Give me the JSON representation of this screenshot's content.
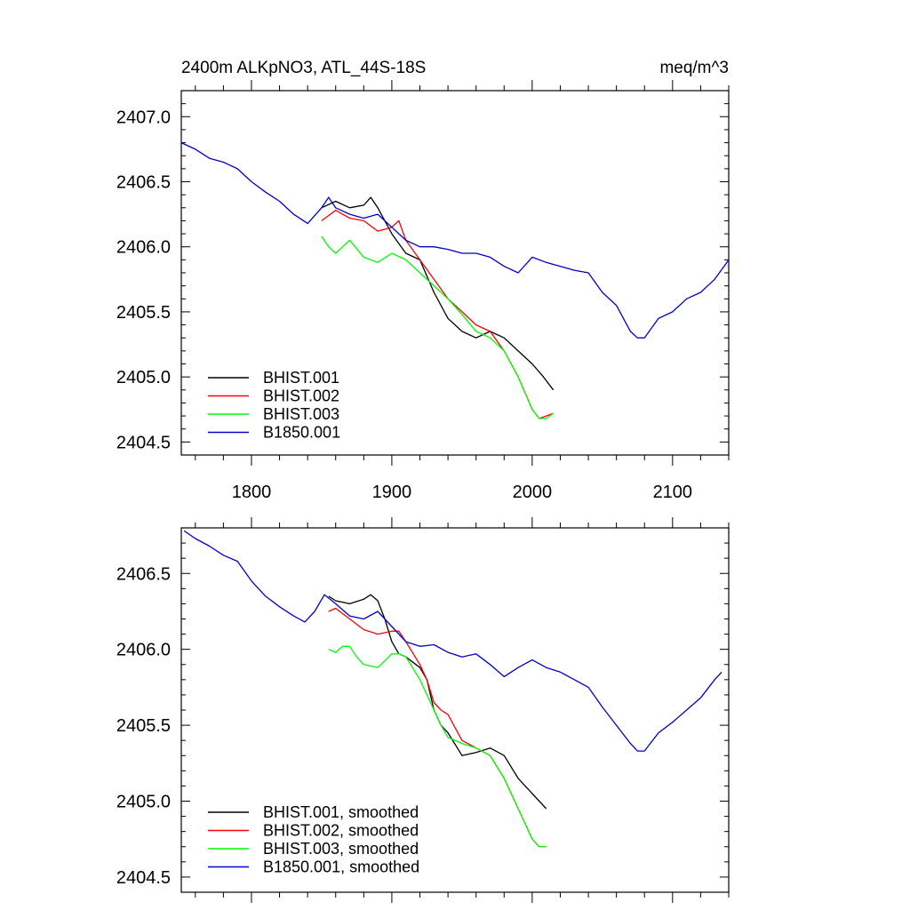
{
  "chart_data": [
    {
      "type": "line",
      "title": "2400m ALKpNO3, ATL_44S-18S",
      "units": "meq/m^3",
      "xlim": [
        1750,
        2140
      ],
      "ylim": [
        2404.4,
        2407.2
      ],
      "yticks": [
        2404.5,
        2405.0,
        2405.5,
        2406.0,
        2406.5,
        2407.0
      ],
      "ytick_labels": [
        "2404.5",
        "2405.0",
        "2405.5",
        "2406.0",
        "2406.5",
        "2407.0"
      ],
      "xticks": [
        1800,
        1900,
        2000,
        2100
      ],
      "xtick_labels": [
        "1800",
        "1900",
        "2000",
        "2100"
      ],
      "legend_position": "bottom-left",
      "series": [
        {
          "name": "BHIST.001",
          "color": "#000000",
          "x": [
            1850,
            1860,
            1870,
            1880,
            1885,
            1890,
            1900,
            1910,
            1920,
            1930,
            1940,
            1950,
            1960,
            1970,
            1980,
            1990,
            2000,
            2008,
            2015
          ],
          "y": [
            2406.3,
            2406.35,
            2406.3,
            2406.32,
            2406.38,
            2406.3,
            2406.1,
            2405.95,
            2405.9,
            2405.65,
            2405.45,
            2405.35,
            2405.3,
            2405.35,
            2405.3,
            2405.2,
            2405.1,
            2405.0,
            2404.9
          ]
        },
        {
          "name": "BHIST.002",
          "color": "#ff0000",
          "x": [
            1850,
            1860,
            1870,
            1880,
            1890,
            1900,
            1905,
            1910,
            1920,
            1930,
            1940,
            1950,
            1960,
            1970,
            1980,
            1990,
            2000,
            2005,
            2010,
            2015
          ],
          "y": [
            2406.2,
            2406.28,
            2406.22,
            2406.2,
            2406.12,
            2406.15,
            2406.2,
            2406.05,
            2405.9,
            2405.75,
            2405.6,
            2405.5,
            2405.4,
            2405.35,
            2405.2,
            2405.0,
            2404.75,
            2404.68,
            2404.7,
            2404.72
          ]
        },
        {
          "name": "BHIST.003",
          "color": "#00ff00",
          "x": [
            1850,
            1855,
            1860,
            1870,
            1880,
            1890,
            1900,
            1910,
            1920,
            1930,
            1940,
            1950,
            1960,
            1970,
            1980,
            1990,
            2000,
            2005,
            2010,
            2015
          ],
          "y": [
            2406.08,
            2406.0,
            2405.95,
            2406.05,
            2405.92,
            2405.88,
            2405.95,
            2405.9,
            2405.8,
            2405.7,
            2405.6,
            2405.48,
            2405.35,
            2405.3,
            2405.2,
            2405.0,
            2404.75,
            2404.68,
            2404.68,
            2404.72
          ]
        },
        {
          "name": "B1850.001",
          "color": "#0000cc",
          "x": [
            1750,
            1760,
            1770,
            1780,
            1790,
            1800,
            1810,
            1820,
            1830,
            1840,
            1850,
            1855,
            1860,
            1870,
            1880,
            1890,
            1900,
            1910,
            1920,
            1930,
            1940,
            1950,
            1960,
            1970,
            1980,
            1990,
            2000,
            2010,
            2020,
            2030,
            2040,
            2050,
            2060,
            2070,
            2075,
            2080,
            2090,
            2100,
            2110,
            2120,
            2130,
            2140
          ],
          "y": [
            2406.8,
            2406.75,
            2406.68,
            2406.65,
            2406.6,
            2406.5,
            2406.42,
            2406.35,
            2406.25,
            2406.18,
            2406.3,
            2406.38,
            2406.3,
            2406.25,
            2406.22,
            2406.25,
            2406.15,
            2406.05,
            2406.0,
            2406.0,
            2405.98,
            2405.95,
            2405.95,
            2405.92,
            2405.85,
            2405.8,
            2405.92,
            2405.88,
            2405.85,
            2405.82,
            2405.8,
            2405.65,
            2405.55,
            2405.35,
            2405.3,
            2405.3,
            2405.45,
            2405.5,
            2405.6,
            2405.65,
            2405.75,
            2405.9
          ]
        }
      ]
    },
    {
      "type": "line",
      "xlim": [
        1750,
        2140
      ],
      "ylim": [
        2404.4,
        2406.8
      ],
      "yticks": [
        2404.5,
        2405.0,
        2405.5,
        2406.0,
        2406.5
      ],
      "ytick_labels": [
        "2404.5",
        "2405.0",
        "2405.5",
        "2406.0",
        "2406.5"
      ],
      "xticks": [
        1800,
        1900,
        2000,
        2100
      ],
      "xtick_labels": [],
      "legend_position": "bottom-left",
      "series": [
        {
          "name": "BHIST.001, smoothed",
          "color": "#000000",
          "x": [
            1855,
            1860,
            1870,
            1880,
            1885,
            1890,
            1895,
            1900,
            1905,
            1910,
            1920,
            1925,
            1930,
            1935,
            1940,
            1950,
            1960,
            1970,
            1980,
            1990,
            2000,
            2010
          ],
          "y": [
            2406.35,
            2406.32,
            2406.3,
            2406.33,
            2406.36,
            2406.32,
            2406.2,
            2406.05,
            2405.97,
            2405.95,
            2405.88,
            2405.8,
            2405.6,
            2405.5,
            2405.45,
            2405.3,
            2405.32,
            2405.35,
            2405.3,
            2405.15,
            2405.05,
            2404.95
          ]
        },
        {
          "name": "BHIST.002, smoothed",
          "color": "#ff0000",
          "x": [
            1855,
            1860,
            1870,
            1880,
            1890,
            1900,
            1905,
            1910,
            1920,
            1925,
            1930,
            1935,
            1940,
            1950,
            1960,
            1970,
            1980,
            1990,
            2000,
            2005,
            2010
          ],
          "y": [
            2406.25,
            2406.27,
            2406.2,
            2406.13,
            2406.1,
            2406.12,
            2406.12,
            2406.05,
            2405.9,
            2405.8,
            2405.65,
            2405.6,
            2405.57,
            2405.4,
            2405.35,
            2405.3,
            2405.15,
            2404.95,
            2404.75,
            2404.7,
            2404.7
          ]
        },
        {
          "name": "BHIST.003, smoothed",
          "color": "#00ff00",
          "x": [
            1855,
            1860,
            1865,
            1870,
            1875,
            1880,
            1890,
            1900,
            1905,
            1910,
            1920,
            1930,
            1935,
            1940,
            1950,
            1960,
            1970,
            1980,
            1990,
            2000,
            2005,
            2010
          ],
          "y": [
            2406.0,
            2405.98,
            2406.02,
            2406.02,
            2405.95,
            2405.9,
            2405.88,
            2405.97,
            2405.97,
            2405.95,
            2405.8,
            2405.6,
            2405.5,
            2405.42,
            2405.38,
            2405.35,
            2405.3,
            2405.15,
            2404.95,
            2404.75,
            2404.7,
            2404.7
          ]
        },
        {
          "name": "B1850.001, smoothed",
          "color": "#0000cc",
          "x": [
            1752,
            1760,
            1770,
            1780,
            1790,
            1800,
            1810,
            1820,
            1830,
            1838,
            1845,
            1852,
            1860,
            1870,
            1880,
            1890,
            1900,
            1910,
            1920,
            1930,
            1940,
            1950,
            1960,
            1970,
            1980,
            1990,
            2000,
            2010,
            2020,
            2030,
            2040,
            2050,
            2060,
            2070,
            2075,
            2080,
            2090,
            2100,
            2110,
            2120,
            2130,
            2135
          ],
          "y": [
            2406.78,
            2406.73,
            2406.68,
            2406.62,
            2406.58,
            2406.45,
            2406.35,
            2406.28,
            2406.22,
            2406.18,
            2406.25,
            2406.36,
            2406.3,
            2406.22,
            2406.2,
            2406.25,
            2406.15,
            2406.05,
            2406.02,
            2406.03,
            2405.98,
            2405.95,
            2405.97,
            2405.9,
            2405.82,
            2405.88,
            2405.93,
            2405.88,
            2405.85,
            2405.8,
            2405.75,
            2405.62,
            2405.5,
            2405.38,
            2405.33,
            2405.33,
            2405.45,
            2405.52,
            2405.6,
            2405.68,
            2405.8,
            2405.85
          ]
        }
      ]
    }
  ]
}
